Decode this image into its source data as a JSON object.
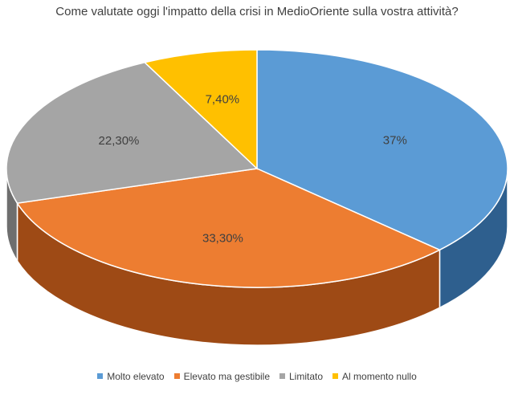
{
  "chart_data": {
    "type": "pie",
    "title": "Come valutate oggi l'impatto della crisi in MedioOriente sulla vostra attività?",
    "categories": [
      "Molto elevato",
      "Elevato ma gestibile",
      "Limitato",
      "Al momento nullo"
    ],
    "values": [
      37,
      33.3,
      22.3,
      7.4
    ],
    "data_labels": [
      "37%",
      "33,30%",
      "22,30%",
      "7,40%"
    ],
    "colors": [
      "#5b9bd5",
      "#ed7d31",
      "#a5a5a5",
      "#ffc000"
    ],
    "side_colors": [
      "#2e5f8e",
      "#9e4a15",
      "#6e6e6e",
      "#b38600"
    ],
    "legend_position": "bottom",
    "style": "3d"
  }
}
